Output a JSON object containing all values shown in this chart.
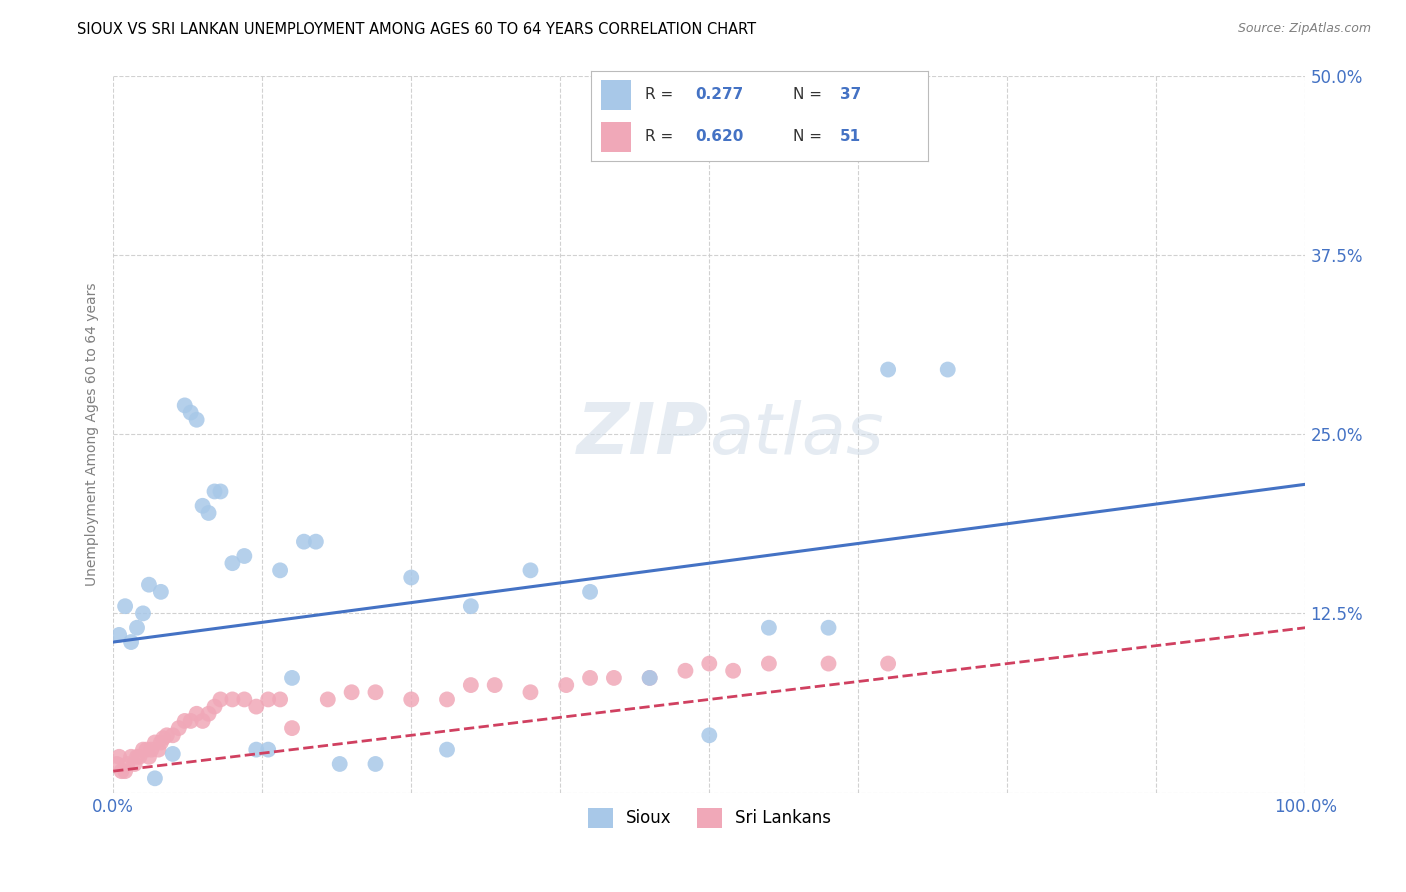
{
  "title": "SIOUX VS SRI LANKAN UNEMPLOYMENT AMONG AGES 60 TO 64 YEARS CORRELATION CHART",
  "source": "Source: ZipAtlas.com",
  "ylabel": "Unemployment Among Ages 60 to 64 years",
  "xlim": [
    0.0,
    1.0
  ],
  "ylim": [
    0.0,
    0.5
  ],
  "xticks": [
    0.0,
    0.125,
    0.25,
    0.375,
    0.5,
    0.625,
    0.75,
    0.875,
    1.0
  ],
  "xticklabels": [
    "0.0%",
    "",
    "",
    "",
    "",
    "",
    "",
    "",
    "100.0%"
  ],
  "yticks": [
    0.0,
    0.125,
    0.25,
    0.375,
    0.5
  ],
  "yticklabels": [
    "",
    "12.5%",
    "25.0%",
    "37.5%",
    "50.0%"
  ],
  "background_color": "#ffffff",
  "grid_color": "#cccccc",
  "sioux_color": "#a8c8e8",
  "sri_lankan_color": "#f0a8b8",
  "sioux_line_color": "#4472c4",
  "sri_lankan_line_color": "#d04060",
  "sioux_scatter_x": [
    0.005,
    0.01,
    0.015,
    0.02,
    0.025,
    0.03,
    0.035,
    0.04,
    0.05,
    0.06,
    0.065,
    0.07,
    0.075,
    0.08,
    0.085,
    0.09,
    0.1,
    0.11,
    0.12,
    0.13,
    0.14,
    0.15,
    0.16,
    0.17,
    0.19,
    0.22,
    0.25,
    0.28,
    0.3,
    0.35,
    0.4,
    0.45,
    0.5,
    0.55,
    0.6,
    0.65,
    0.7
  ],
  "sioux_scatter_y": [
    0.11,
    0.13,
    0.105,
    0.115,
    0.125,
    0.145,
    0.01,
    0.14,
    0.027,
    0.27,
    0.265,
    0.26,
    0.2,
    0.195,
    0.21,
    0.21,
    0.16,
    0.165,
    0.03,
    0.03,
    0.155,
    0.08,
    0.175,
    0.175,
    0.02,
    0.02,
    0.15,
    0.03,
    0.13,
    0.155,
    0.14,
    0.08,
    0.04,
    0.115,
    0.115,
    0.295,
    0.295
  ],
  "sri_scatter_x": [
    0.003,
    0.005,
    0.007,
    0.01,
    0.012,
    0.015,
    0.018,
    0.02,
    0.022,
    0.025,
    0.028,
    0.03,
    0.032,
    0.035,
    0.038,
    0.04,
    0.042,
    0.045,
    0.05,
    0.055,
    0.06,
    0.065,
    0.07,
    0.075,
    0.08,
    0.085,
    0.09,
    0.1,
    0.11,
    0.12,
    0.13,
    0.14,
    0.15,
    0.18,
    0.2,
    0.22,
    0.25,
    0.28,
    0.3,
    0.32,
    0.35,
    0.38,
    0.4,
    0.42,
    0.45,
    0.48,
    0.5,
    0.52,
    0.55,
    0.6,
    0.65
  ],
  "sri_scatter_y": [
    0.02,
    0.025,
    0.015,
    0.015,
    0.02,
    0.025,
    0.02,
    0.025,
    0.025,
    0.03,
    0.03,
    0.025,
    0.03,
    0.035,
    0.03,
    0.035,
    0.038,
    0.04,
    0.04,
    0.045,
    0.05,
    0.05,
    0.055,
    0.05,
    0.055,
    0.06,
    0.065,
    0.065,
    0.065,
    0.06,
    0.065,
    0.065,
    0.045,
    0.065,
    0.07,
    0.07,
    0.065,
    0.065,
    0.075,
    0.075,
    0.07,
    0.075,
    0.08,
    0.08,
    0.08,
    0.085,
    0.09,
    0.085,
    0.09,
    0.09,
    0.09
  ],
  "sioux_trend_x": [
    0.0,
    1.0
  ],
  "sioux_trend_y": [
    0.105,
    0.215
  ],
  "sri_trend_x": [
    0.0,
    1.0
  ],
  "sri_trend_y": [
    0.015,
    0.115
  ]
}
